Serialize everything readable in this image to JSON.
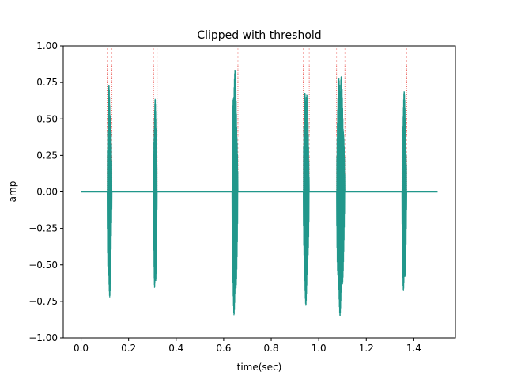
{
  "chart_data": {
    "type": "line",
    "title": "Clipped with threshold",
    "xlabel": "time(sec)",
    "ylabel": "amp",
    "xlim": [
      -0.075,
      1.575
    ],
    "ylim": [
      -1.0,
      1.0
    ],
    "xticks": [
      0.0,
      0.2,
      0.4,
      0.6,
      0.8,
      1.0,
      1.2,
      1.4
    ],
    "xtick_labels": [
      "0.0",
      "0.2",
      "0.4",
      "0.6",
      "0.8",
      "1.0",
      "1.2",
      "1.4"
    ],
    "yticks": [
      -1.0,
      -0.75,
      -0.5,
      -0.25,
      0.0,
      0.25,
      0.5,
      0.75,
      1.0
    ],
    "ytick_labels": [
      "−1.00",
      "−0.75",
      "−0.50",
      "−0.25",
      "0.00",
      "0.25",
      "0.50",
      "0.75",
      "1.00"
    ],
    "grid": false,
    "signal": {
      "color": "#21978b",
      "baseline": {
        "x_start": 0.0,
        "x_end": 1.5,
        "y": 0.0
      },
      "bursts": [
        {
          "start": 0.11,
          "end": 0.13,
          "peak_pos": 0.75,
          "peak_neg": -0.76
        },
        {
          "start": 0.305,
          "end": 0.32,
          "peak_pos": 0.64,
          "peak_neg": -0.73
        },
        {
          "start": 0.635,
          "end": 0.66,
          "peak_pos": 0.86,
          "peak_neg": -0.87
        },
        {
          "start": 0.935,
          "end": 0.96,
          "peak_pos": 0.76,
          "peak_neg": -0.78
        },
        {
          "start": 1.075,
          "end": 1.11,
          "peak_pos": 0.85,
          "peak_neg": -0.85
        },
        {
          "start": 1.35,
          "end": 1.37,
          "peak_pos": 0.7,
          "peak_neg": -0.73
        }
      ]
    },
    "threshold_lines": {
      "color": "#e8413c",
      "y_bottom": 0.0,
      "y_top": 1.0,
      "x": [
        0.11,
        0.13,
        0.305,
        0.32,
        0.635,
        0.66,
        0.935,
        0.96,
        1.075,
        1.11,
        1.35,
        1.37
      ]
    }
  }
}
